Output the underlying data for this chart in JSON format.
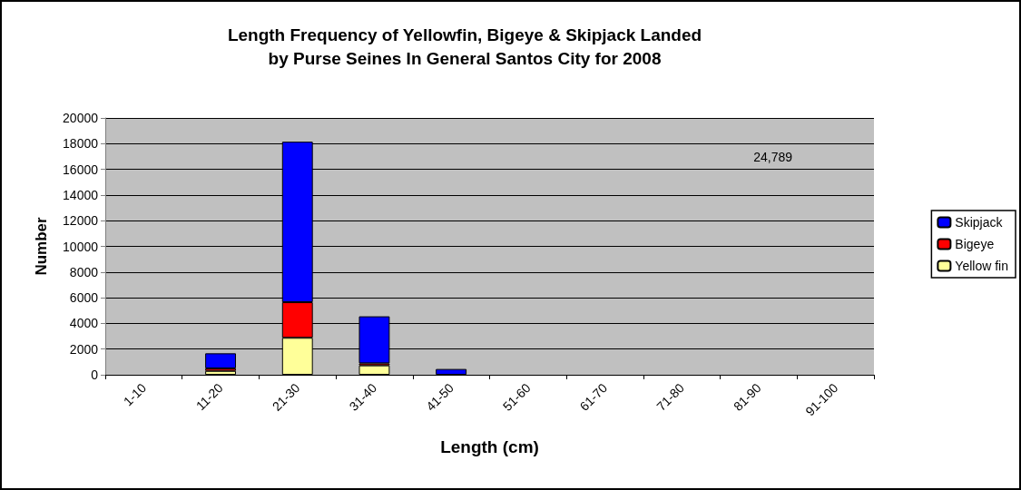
{
  "chart_data": {
    "type": "bar",
    "title": "Length Frequency of Yellowfin, Bigeye & Skipjack Landed\nby Purse Seines In General Santos City for 2008",
    "xlabel": "Length (cm)",
    "ylabel": "Number",
    "categories": [
      "1-10",
      "11-20",
      "21-30",
      "31-40",
      "41-50",
      "51-60",
      "61-70",
      "71-80",
      "81-90",
      "91-100"
    ],
    "series": [
      {
        "name": "Yellow fin",
        "color": "#ffff99",
        "values": [
          null,
          300,
          2880,
          730,
          null,
          null,
          null,
          null,
          null,
          null
        ]
      },
      {
        "name": "Bigeye",
        "color": "#ff0000",
        "values": [
          null,
          200,
          2770,
          160,
          null,
          null,
          null,
          null,
          null,
          null
        ]
      },
      {
        "name": "Skipjack",
        "color": "#0000ff",
        "values": [
          null,
          1170,
          12500,
          3660,
          450,
          null,
          null,
          null,
          null,
          null
        ]
      }
    ],
    "stacked": true,
    "ylim": [
      0,
      20000
    ],
    "yticks": [
      0,
      2000,
      4000,
      6000,
      8000,
      10000,
      12000,
      14000,
      16000,
      18000,
      20000
    ],
    "grid": "y",
    "legend": "right",
    "annotations": [
      "24,789"
    ]
  }
}
